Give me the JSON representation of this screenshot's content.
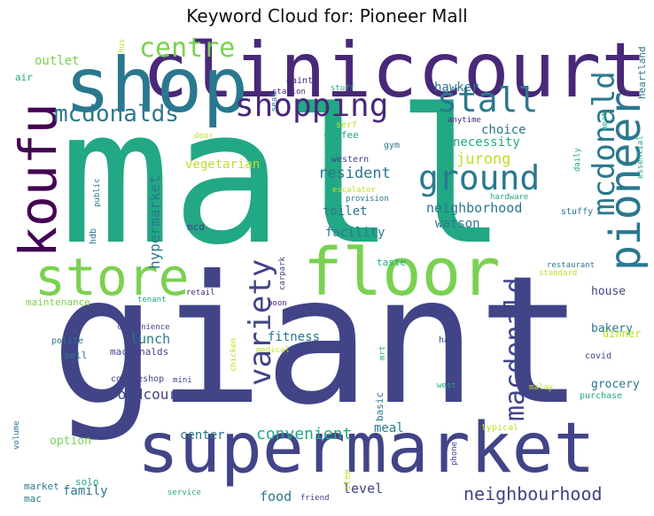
{
  "title": "Keyword Cloud for: Pioneer Mall",
  "words": [
    {
      "text": "mall",
      "color": "#22a884",
      "rotated": false
    },
    {
      "text": "giant",
      "color": "#414487",
      "rotated": false
    },
    {
      "text": "supermarket",
      "color": "#414487",
      "rotated": false
    },
    {
      "text": "cliniccourt",
      "color": "#482878",
      "rotated": false
    },
    {
      "text": "shop",
      "color": "#2a788e",
      "rotated": false
    },
    {
      "text": "floor",
      "color": "#7ad151",
      "rotated": false
    },
    {
      "text": "koufu",
      "color": "#440154",
      "rotated": true
    },
    {
      "text": "store",
      "color": "#7ad151",
      "rotated": false
    },
    {
      "text": "pioneer",
      "color": "#2a788e",
      "rotated": true
    },
    {
      "text": "centre",
      "color": "#7ad151",
      "rotated": false
    },
    {
      "text": "mcdonalds",
      "color": "#2a788e",
      "rotated": false
    },
    {
      "text": "shopping",
      "color": "#482878",
      "rotated": false
    },
    {
      "text": "stall",
      "color": "#2a788e",
      "rotated": false
    },
    {
      "text": "ground",
      "color": "#2a788e",
      "rotated": false
    },
    {
      "text": "mcdonald",
      "color": "#2a788e",
      "rotated": true
    },
    {
      "text": "macdonald",
      "color": "#414487",
      "rotated": true
    },
    {
      "text": "variety",
      "color": "#414487",
      "rotated": true
    },
    {
      "text": "supermarket",
      "color": "#414487",
      "rotated": false
    },
    {
      "text": "convenient",
      "color": "#22a884",
      "rotated": false
    },
    {
      "text": "neighbourhood",
      "color": "#414487",
      "rotated": false
    },
    {
      "text": "resident",
      "color": "#2a788e",
      "rotated": false
    },
    {
      "text": "jurong",
      "color": "#bddf26",
      "rotated": false
    },
    {
      "text": "neighborhood",
      "color": "#2a788e",
      "rotated": false
    },
    {
      "text": "hawker",
      "color": "#2a788e",
      "rotated": false
    },
    {
      "text": "choice",
      "color": "#2a788e",
      "rotated": false
    },
    {
      "text": "necessity",
      "color": "#22a884",
      "rotated": false
    },
    {
      "text": "toilet",
      "color": "#2a788e",
      "rotated": false
    },
    {
      "text": "watson",
      "color": "#2a788e",
      "rotated": false
    },
    {
      "text": "facility",
      "color": "#2a788e",
      "rotated": false
    },
    {
      "text": "hypermarket",
      "color": "#2a788e",
      "rotated": true
    },
    {
      "text": "vegetarian",
      "color": "#bddf26",
      "rotated": false
    },
    {
      "text": "lunch",
      "color": "#2a788e",
      "rotated": false
    },
    {
      "text": "fitness",
      "color": "#2a788e",
      "rotated": false
    },
    {
      "text": "foodcourt",
      "color": "#414487",
      "rotated": false
    },
    {
      "text": "family",
      "color": "#2a788e",
      "rotated": false
    },
    {
      "text": "food",
      "color": "#2a788e",
      "rotated": false
    },
    {
      "text": "level",
      "color": "#414487",
      "rotated": false
    },
    {
      "text": "center",
      "color": "#2a788e",
      "rotated": false
    },
    {
      "text": "meal",
      "color": "#2a788e",
      "rotated": false
    },
    {
      "text": "outlet",
      "color": "#7ad151",
      "rotated": false
    },
    {
      "text": "grocery",
      "color": "#2a788e",
      "rotated": false
    },
    {
      "text": "bakery",
      "color": "#2a788e",
      "rotated": false
    },
    {
      "text": "house",
      "color": "#414487",
      "rotated": false
    },
    {
      "text": "dinner",
      "color": "#bddf26",
      "rotated": false
    },
    {
      "text": "option",
      "color": "#7ad151",
      "rotated": false
    },
    {
      "text": "heartland",
      "color": "#2a788e",
      "rotated": true
    },
    {
      "text": "air",
      "color": "#22a884",
      "rotated": false
    },
    {
      "text": "hus",
      "color": "#bddf26",
      "rotated": true
    },
    {
      "text": "seat",
      "color": "#2a788e",
      "rotated": true
    },
    {
      "text": "gaint",
      "color": "#482878",
      "rotated": false
    },
    {
      "text": "station",
      "color": "#482878",
      "rotated": false
    },
    {
      "text": "stuff",
      "color": "#22a884",
      "rotated": false
    },
    {
      "text": "anytime",
      "color": "#482878",
      "rotated": false
    },
    {
      "text": "serf",
      "color": "#bddf26",
      "rotated": false
    },
    {
      "text": "coffee",
      "color": "#22a884",
      "rotated": false
    },
    {
      "text": "gym",
      "color": "#2a788e",
      "rotated": false
    },
    {
      "text": "western",
      "color": "#414487",
      "rotated": false
    },
    {
      "text": "door",
      "color": "#bddf26",
      "rotated": false
    },
    {
      "text": "meat",
      "color": "#22a884",
      "rotated": true
    },
    {
      "text": "daily",
      "color": "#22a884",
      "rotated": true
    },
    {
      "text": "essential",
      "color": "#22a884",
      "rotated": true
    },
    {
      "text": "escalator",
      "color": "#bddf26",
      "rotated": false
    },
    {
      "text": "provision",
      "color": "#2a788e",
      "rotated": false
    },
    {
      "text": "hardware",
      "color": "#22a884",
      "rotated": false
    },
    {
      "text": "stuffy",
      "color": "#2a788e",
      "rotated": false
    },
    {
      "text": "public",
      "color": "#2a788e",
      "rotated": true
    },
    {
      "text": "hdb",
      "color": "#2a788e",
      "rotated": true
    },
    {
      "text": "mcd",
      "color": "#414487",
      "rotated": false
    },
    {
      "text": "taste",
      "color": "#22a884",
      "rotated": false
    },
    {
      "text": "restaurant",
      "color": "#2a788e",
      "rotated": false
    },
    {
      "text": "standard",
      "color": "#bddf26",
      "rotated": false
    },
    {
      "text": "retail",
      "color": "#482878",
      "rotated": false
    },
    {
      "text": "carpark",
      "color": "#414487",
      "rotated": true
    },
    {
      "text": "maintenance",
      "color": "#7ad151",
      "rotated": false
    },
    {
      "text": "tenant",
      "color": "#22a884",
      "rotated": false
    },
    {
      "text": "boon",
      "color": "#482878",
      "rotated": false
    },
    {
      "text": "convenience",
      "color": "#414487",
      "rotated": false
    },
    {
      "text": "polite",
      "color": "#2a788e",
      "rotated": false
    },
    {
      "text": "macdonalds",
      "color": "#414487",
      "rotated": false
    },
    {
      "text": "sell",
      "color": "#2a788e",
      "rotated": false
    },
    {
      "text": "chicken",
      "color": "#bddf26",
      "rotated": true
    },
    {
      "text": "medical",
      "color": "#bddf26",
      "rotated": false
    },
    {
      "text": "mrt",
      "color": "#22a884",
      "rotated": true
    },
    {
      "text": "hang",
      "color": "#414487",
      "rotated": false
    },
    {
      "text": "covid",
      "color": "#414487",
      "rotated": false
    },
    {
      "text": "coffeeshop",
      "color": "#414487",
      "rotated": false
    },
    {
      "text": "mini",
      "color": "#414487",
      "rotated": false
    },
    {
      "text": "basic",
      "color": "#2a788e",
      "rotated": true
    },
    {
      "text": "west",
      "color": "#22a884",
      "rotated": false
    },
    {
      "text": "malay",
      "color": "#bddf26",
      "rotated": false
    },
    {
      "text": "purchase",
      "color": "#22a884",
      "rotated": false
    },
    {
      "text": "typical",
      "color": "#bddf26",
      "rotated": false
    },
    {
      "text": "volume",
      "color": "#2a788e",
      "rotated": true
    },
    {
      "text": "item",
      "color": "#bddf26",
      "rotated": true
    },
    {
      "text": "phone",
      "color": "#414487",
      "rotated": true
    },
    {
      "text": "solo",
      "color": "#22a884",
      "rotated": false
    },
    {
      "text": "market",
      "color": "#2a788e",
      "rotated": false
    },
    {
      "text": "mac",
      "color": "#2a788e",
      "rotated": false
    },
    {
      "text": "service",
      "color": "#22a884",
      "rotated": false
    },
    {
      "text": "friend",
      "color": "#414487",
      "rotated": false
    }
  ]
}
